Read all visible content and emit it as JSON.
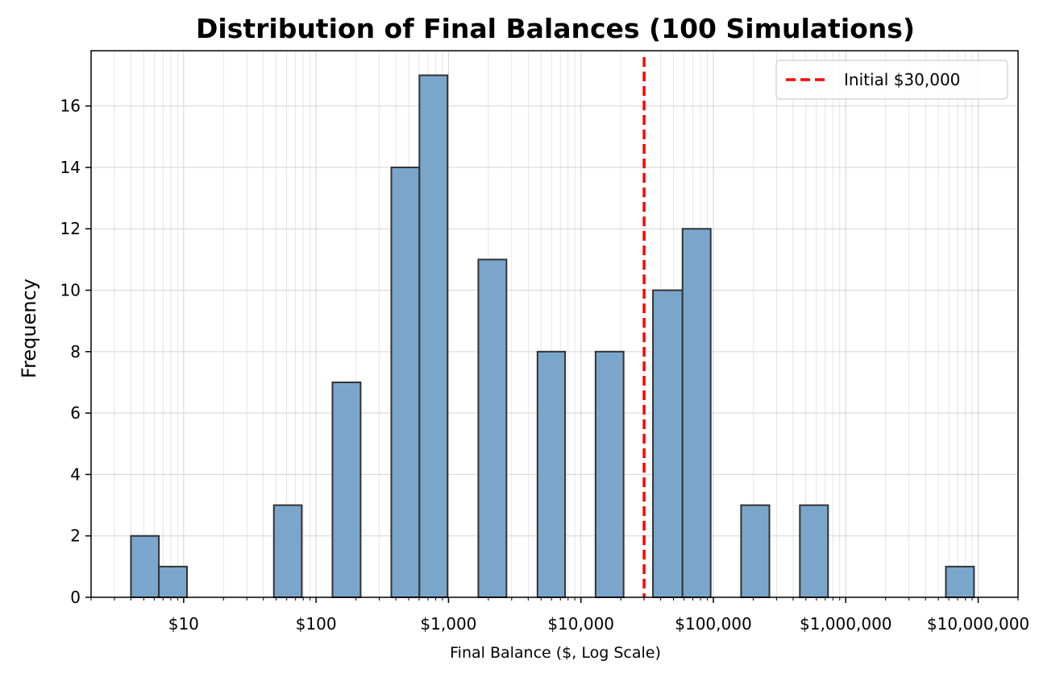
{
  "chart_data": {
    "type": "bar",
    "title": "Distribution of Final Balances (100 Simulations)",
    "xlabel": "Final Balance ($, Log Scale)",
    "ylabel": "Frequency",
    "x_scale": "log",
    "xlim": [
      2,
      20000000
    ],
    "ylim": [
      0,
      17.8
    ],
    "grid": true,
    "legend_position": "top-right",
    "bar_color": "#7aa6cc",
    "bar_edge_color": "#333333",
    "x_ticks": [
      {
        "value": 10,
        "label": "$10"
      },
      {
        "value": 100,
        "label": "$100"
      },
      {
        "value": 1000,
        "label": "$1,000"
      },
      {
        "value": 10000,
        "label": "$10,000"
      },
      {
        "value": 100000,
        "label": "$100,000"
      },
      {
        "value": 1000000,
        "label": "$1,000,000"
      },
      {
        "value": 10000000,
        "label": "$10,000,000"
      }
    ],
    "y_ticks": [
      0,
      2,
      4,
      6,
      8,
      10,
      12,
      14,
      16
    ],
    "bins": [
      {
        "x0": 4.0,
        "x1": 6.5,
        "count": 2
      },
      {
        "x0": 6.5,
        "x1": 10.6,
        "count": 1
      },
      {
        "x0": 48,
        "x1": 78,
        "count": 3
      },
      {
        "x0": 133,
        "x1": 217,
        "count": 7
      },
      {
        "x0": 370,
        "x1": 603,
        "count": 14
      },
      {
        "x0": 603,
        "x1": 983,
        "count": 17
      },
      {
        "x0": 1680,
        "x1": 2740,
        "count": 11
      },
      {
        "x0": 4700,
        "x1": 7600,
        "count": 8
      },
      {
        "x0": 12900,
        "x1": 21000,
        "count": 8
      },
      {
        "x0": 35000,
        "x1": 58500,
        "count": 10
      },
      {
        "x0": 58500,
        "x1": 95500,
        "count": 12
      },
      {
        "x0": 162000,
        "x1": 265000,
        "count": 3
      },
      {
        "x0": 450000,
        "x1": 735000,
        "count": 3
      },
      {
        "x0": 5700000,
        "x1": 9300000,
        "count": 1
      }
    ],
    "reference_line": {
      "x": 30000,
      "label": "Initial $30,000",
      "color": "#ff0000",
      "style": "dashed"
    }
  }
}
